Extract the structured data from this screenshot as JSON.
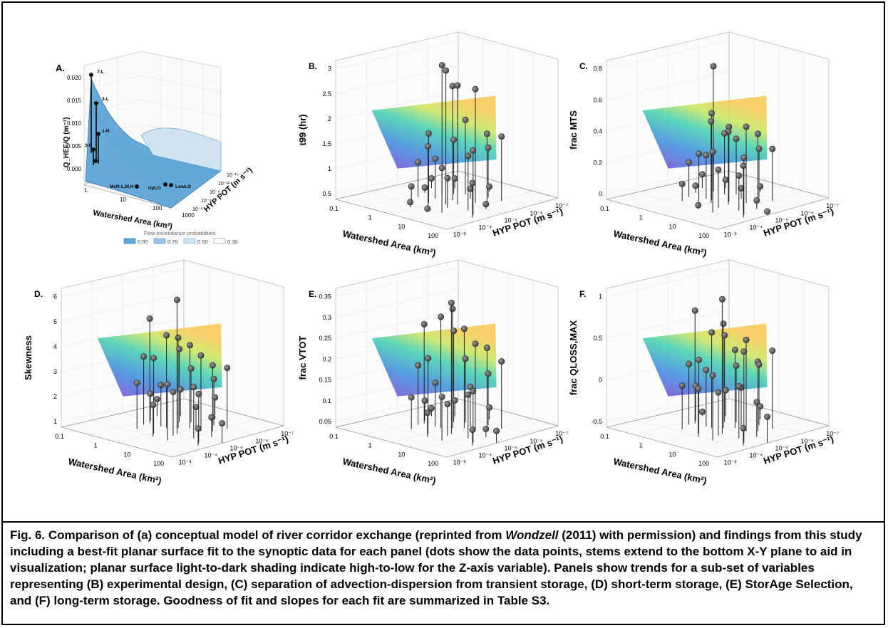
{
  "caption": {
    "part1": "Fig. 6. Comparison of (a) conceptual model of river corridor exchange (reprinted from ",
    "author": "Wondzell",
    "part2": " (2011) with permission) and findings from this study including a best-fit planar surface fit to the synoptic data for each panel (dots show the data points, stems extend to the bottom X-Y plane to aid in visualization; planar surface light-to-dark shading indicate high-to-low for the Z-axis variable). Panels show trends for a sub-set of variables representing (B) experimental design, (C) separation of advection-dispersion from transient storage, (D) short-term storage, (E) StorAge Selection, and (F) long-term storage. Goodness of fit and slopes for each fit are summarized in Table S3."
  },
  "panel_a": {
    "label": "A.",
    "ylabel": "Q_HEF/Q (m⁻¹)",
    "xlabel": "Watershed Area (km²)",
    "zlabel": "HYP POT (m s⁻¹)",
    "yticks": [
      "0.020",
      "0.015",
      "0.010",
      "0.005",
      "0.000"
    ],
    "xticks": [
      "1",
      "10",
      "100",
      "1000"
    ],
    "zticks": [
      "10⁻¹⁵",
      "10⁻¹²",
      "10⁻⁹",
      "10⁻⁶",
      "10⁻³"
    ],
    "annotations": [
      "7-L",
      "3-L",
      "1-H",
      "3-H",
      "McR-L,M,H",
      "UpLO",
      "LowLO"
    ],
    "legend_title": "Flow exceedance probabilities",
    "legend": [
      "0.90",
      "0.70",
      "0.50",
      "0.30"
    ],
    "colors": [
      "#5ea6d8",
      "#9cc7e6",
      "#cfe3f2",
      "#ffffff"
    ]
  },
  "shared_axes": {
    "xlabel": "Watershed Area (km²)",
    "ylabel": "HYP POT (m s⁻¹)",
    "xticks": [
      "0.1",
      "1",
      "10",
      "100"
    ],
    "yticks": [
      "10⁻³",
      "10⁻⁴",
      "10⁻⁵",
      "10⁻⁶",
      "10⁻⁷"
    ]
  },
  "chart_data": [
    {
      "panel": "B.",
      "type": "scatter",
      "zlabel": "t99 (hr)",
      "zticks": [
        "3",
        "2.5",
        "2",
        "1.5",
        "1",
        "0.5"
      ],
      "zlim": [
        0.3,
        3.1
      ],
      "points": [
        [
          0.35,
          0.55,
          2.9
        ],
        [
          0.45,
          0.35,
          1.7
        ],
        [
          0.55,
          0.4,
          3.0
        ],
        [
          0.5,
          0.5,
          2.6
        ],
        [
          0.6,
          0.45,
          2.7
        ],
        [
          0.4,
          0.6,
          1.4
        ],
        [
          0.3,
          0.4,
          1.0
        ],
        [
          0.65,
          0.55,
          2.6
        ],
        [
          0.7,
          0.6,
          1.7
        ],
        [
          0.72,
          0.7,
          1.6
        ],
        [
          0.5,
          0.3,
          1.5
        ],
        [
          0.45,
          0.65,
          1.8
        ],
        [
          0.3,
          0.7,
          0.5
        ],
        [
          0.25,
          0.5,
          0.4
        ],
        [
          0.55,
          0.6,
          0.5
        ],
        [
          0.6,
          0.7,
          1.3
        ],
        [
          0.75,
          0.4,
          1.4
        ],
        [
          0.85,
          0.35,
          1.6
        ],
        [
          0.9,
          0.3,
          1.0
        ],
        [
          0.4,
          0.45,
          1.1
        ],
        [
          0.5,
          0.8,
          0.4
        ],
        [
          0.35,
          0.3,
          0.6
        ],
        [
          0.62,
          0.35,
          0.9
        ],
        [
          0.68,
          0.25,
          1.2
        ],
        [
          0.8,
          0.5,
          0.4
        ],
        [
          0.55,
          0.25,
          0.3
        ],
        [
          0.2,
          0.6,
          0.5
        ],
        [
          0.45,
          0.2,
          0.4
        ]
      ]
    },
    {
      "panel": "C.",
      "type": "scatter",
      "zlabel": "frac MTS",
      "zticks": [
        "0.8",
        "0.6",
        "0.4",
        "0.2",
        "0"
      ],
      "zlim": [
        0,
        0.8
      ],
      "points": [
        [
          0.3,
          0.6,
          0.72
        ],
        [
          0.45,
          0.45,
          0.5
        ],
        [
          0.5,
          0.4,
          0.47
        ],
        [
          0.55,
          0.5,
          0.43
        ],
        [
          0.6,
          0.45,
          0.42
        ],
        [
          0.4,
          0.6,
          0.35
        ],
        [
          0.3,
          0.4,
          0.2
        ],
        [
          0.65,
          0.55,
          0.44
        ],
        [
          0.7,
          0.6,
          0.4
        ],
        [
          0.72,
          0.7,
          0.3
        ],
        [
          0.5,
          0.3,
          0.3
        ],
        [
          0.45,
          0.65,
          0.32
        ],
        [
          0.3,
          0.7,
          0.05
        ],
        [
          0.25,
          0.5,
          0.04
        ],
        [
          0.55,
          0.6,
          0.06
        ],
        [
          0.6,
          0.7,
          0.28
        ],
        [
          0.75,
          0.4,
          0.2
        ],
        [
          0.85,
          0.35,
          0.33
        ],
        [
          0.9,
          0.3,
          0.3
        ],
        [
          0.4,
          0.45,
          0.25
        ],
        [
          0.5,
          0.8,
          0.03
        ],
        [
          0.35,
          0.3,
          0.1
        ],
        [
          0.62,
          0.35,
          0.22
        ],
        [
          0.68,
          0.25,
          0.35
        ],
        [
          0.8,
          0.5,
          0.05
        ],
        [
          0.55,
          0.25,
          0.02
        ],
        [
          0.2,
          0.6,
          0.08
        ],
        [
          0.95,
          0.45,
          0.02
        ]
      ]
    },
    {
      "panel": "D.",
      "type": "scatter",
      "zlabel": "Skewness",
      "zticks": [
        "6",
        "5",
        "4",
        "3",
        "2",
        "1"
      ],
      "zlim": [
        0.5,
        6.2
      ],
      "points": [
        [
          0.3,
          0.45,
          4.8
        ],
        [
          0.45,
          0.45,
          4.3
        ],
        [
          0.5,
          0.5,
          4.2
        ],
        [
          0.6,
          0.4,
          6.0
        ],
        [
          0.55,
          0.55,
          3.9
        ],
        [
          0.4,
          0.6,
          3.5
        ],
        [
          0.3,
          0.4,
          3.3
        ],
        [
          0.65,
          0.55,
          3.6
        ],
        [
          0.7,
          0.6,
          3.2
        ],
        [
          0.72,
          0.7,
          3.0
        ],
        [
          0.5,
          0.3,
          3.6
        ],
        [
          0.45,
          0.65,
          2.7
        ],
        [
          0.3,
          0.7,
          1.6
        ],
        [
          0.25,
          0.5,
          1.6
        ],
        [
          0.55,
          0.6,
          1.3
        ],
        [
          0.6,
          0.7,
          2.4
        ],
        [
          0.75,
          0.4,
          2.6
        ],
        [
          0.85,
          0.35,
          2.5
        ],
        [
          0.9,
          0.3,
          1.2
        ],
        [
          0.4,
          0.45,
          2.2
        ],
        [
          0.5,
          0.8,
          1.4
        ],
        [
          0.35,
          0.3,
          2.4
        ],
        [
          0.62,
          0.35,
          2.3
        ],
        [
          0.68,
          0.25,
          2.8
        ],
        [
          0.8,
          0.5,
          1.3
        ],
        [
          0.55,
          0.25,
          1.8
        ],
        [
          0.2,
          0.6,
          1.2
        ],
        [
          0.95,
          0.45,
          1.3
        ]
      ]
    },
    {
      "panel": "E.",
      "type": "scatter",
      "zlabel": "frac VTOT",
      "zticks": [
        "0.35",
        "0.3",
        "0.25",
        "0.2",
        "0.15",
        "0.1",
        "0.05"
      ],
      "zlim": [
        0.02,
        0.37
      ],
      "points": [
        [
          0.3,
          0.45,
          0.27
        ],
        [
          0.45,
          0.45,
          0.3
        ],
        [
          0.5,
          0.5,
          0.32
        ],
        [
          0.6,
          0.4,
          0.35
        ],
        [
          0.55,
          0.55,
          0.27
        ],
        [
          0.4,
          0.6,
          0.25
        ],
        [
          0.3,
          0.4,
          0.17
        ],
        [
          0.65,
          0.55,
          0.24
        ],
        [
          0.7,
          0.6,
          0.23
        ],
        [
          0.72,
          0.7,
          0.19
        ],
        [
          0.5,
          0.3,
          0.21
        ],
        [
          0.45,
          0.65,
          0.18
        ],
        [
          0.3,
          0.7,
          0.06
        ],
        [
          0.25,
          0.5,
          0.07
        ],
        [
          0.55,
          0.6,
          0.12
        ],
        [
          0.6,
          0.7,
          0.15
        ],
        [
          0.75,
          0.4,
          0.13
        ],
        [
          0.85,
          0.35,
          0.15
        ],
        [
          0.9,
          0.3,
          0.06
        ],
        [
          0.4,
          0.45,
          0.13
        ],
        [
          0.5,
          0.8,
          0.05
        ],
        [
          0.35,
          0.3,
          0.1
        ],
        [
          0.62,
          0.35,
          0.1
        ],
        [
          0.68,
          0.25,
          0.13
        ],
        [
          0.8,
          0.5,
          0.04
        ],
        [
          0.55,
          0.25,
          0.08
        ],
        [
          0.2,
          0.6,
          0.04
        ],
        [
          0.95,
          0.45,
          0.05
        ]
      ]
    },
    {
      "panel": "F.",
      "type": "scatter",
      "zlabel": "frac QLOSS,MAX",
      "zticks": [
        "1",
        "0.5",
        "0",
        "-0.5"
      ],
      "zlim": [
        -0.6,
        1.0
      ],
      "points": [
        [
          0.3,
          0.45,
          0.7
        ],
        [
          0.45,
          0.45,
          0.5
        ],
        [
          0.5,
          0.5,
          0.6
        ],
        [
          0.6,
          0.4,
          0.95
        ],
        [
          0.55,
          0.55,
          0.3
        ],
        [
          0.4,
          0.6,
          0.4
        ],
        [
          0.3,
          0.4,
          0.1
        ],
        [
          0.65,
          0.55,
          0.45
        ],
        [
          0.7,
          0.6,
          0.2
        ],
        [
          0.72,
          0.7,
          0.3
        ],
        [
          0.5,
          0.3,
          0.25
        ],
        [
          0.45,
          0.65,
          0.05
        ],
        [
          0.3,
          0.7,
          -0.3
        ],
        [
          0.25,
          0.5,
          -0.2
        ],
        [
          0.55,
          0.6,
          -0.15
        ],
        [
          0.6,
          0.7,
          0.1
        ],
        [
          0.75,
          0.4,
          0.0
        ],
        [
          0.85,
          0.35,
          0.45
        ],
        [
          0.9,
          0.3,
          -0.4
        ],
        [
          0.4,
          0.45,
          0.05
        ],
        [
          0.5,
          0.8,
          -0.45
        ],
        [
          0.35,
          0.3,
          -0.1
        ],
        [
          0.62,
          0.35,
          -0.1
        ],
        [
          0.68,
          0.25,
          0.15
        ],
        [
          0.8,
          0.5,
          -0.2
        ],
        [
          0.55,
          0.25,
          -0.05
        ],
        [
          0.2,
          0.6,
          -0.55
        ],
        [
          0.95,
          0.45,
          -0.3
        ]
      ]
    }
  ]
}
